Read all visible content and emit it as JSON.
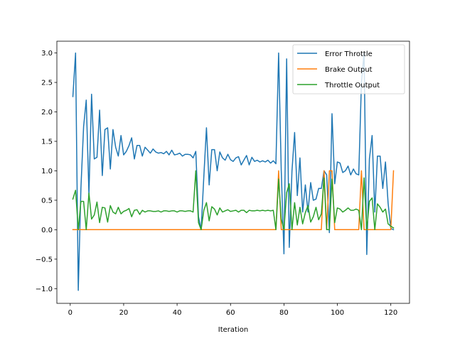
{
  "chart_data": {
    "type": "line",
    "title": "",
    "xlabel": "Iteration",
    "ylabel": "",
    "xlim": [
      -5,
      127
    ],
    "ylim": [
      -1.25,
      3.2
    ],
    "xticks": [
      0,
      20,
      40,
      60,
      80,
      100,
      120
    ],
    "yticks": [
      -1.0,
      -0.5,
      0.0,
      0.5,
      1.0,
      1.5,
      2.0,
      2.5,
      3.0
    ],
    "ytick_labels": [
      "−1.0",
      "−0.5",
      "0.0",
      "0.5",
      "1.0",
      "1.5",
      "2.0",
      "2.5",
      "3.0"
    ],
    "grid": false,
    "legend_position": "top-right",
    "x": [
      1,
      2,
      3,
      4,
      5,
      6,
      7,
      8,
      9,
      10,
      11,
      12,
      13,
      14,
      15,
      16,
      17,
      18,
      19,
      20,
      21,
      22,
      23,
      24,
      25,
      26,
      27,
      28,
      29,
      30,
      31,
      32,
      33,
      34,
      35,
      36,
      37,
      38,
      39,
      40,
      41,
      42,
      43,
      44,
      45,
      46,
      47,
      48,
      49,
      50,
      51,
      52,
      53,
      54,
      55,
      56,
      57,
      58,
      59,
      60,
      61,
      62,
      63,
      64,
      65,
      66,
      67,
      68,
      69,
      70,
      71,
      72,
      73,
      74,
      75,
      76,
      77,
      78,
      79,
      80,
      81,
      82,
      83,
      84,
      85,
      86,
      87,
      88,
      89,
      90,
      91,
      92,
      93,
      94,
      95,
      96,
      97,
      98,
      99,
      100,
      101,
      102,
      103,
      104,
      105,
      106,
      107,
      108,
      109,
      110,
      111,
      112,
      113,
      114,
      115,
      116,
      117,
      118,
      119,
      120,
      121
    ],
    "series": [
      {
        "name": "Error Throttle",
        "color": "#1f77b4",
        "values": [
          2.26,
          3.0,
          -1.03,
          0.7,
          1.75,
          2.2,
          0.6,
          2.3,
          1.2,
          1.23,
          2.03,
          0.92,
          1.7,
          1.73,
          1.03,
          1.7,
          1.4,
          1.25,
          1.6,
          1.27,
          1.33,
          1.43,
          1.56,
          1.2,
          1.43,
          1.43,
          1.25,
          1.4,
          1.35,
          1.3,
          1.37,
          1.32,
          1.3,
          1.31,
          1.29,
          1.33,
          1.27,
          1.35,
          1.27,
          1.28,
          1.3,
          1.25,
          1.28,
          1.28,
          1.27,
          1.22,
          1.33,
          0.22,
          0.0,
          0.9,
          1.73,
          0.76,
          1.36,
          1.36,
          1.0,
          1.32,
          1.22,
          1.18,
          1.28,
          1.19,
          1.16,
          1.22,
          1.24,
          1.1,
          1.18,
          1.26,
          1.1,
          1.23,
          1.16,
          1.18,
          1.15,
          1.17,
          1.15,
          1.18,
          1.13,
          1.17,
          1.12,
          3.0,
          1.0,
          -0.41,
          2.9,
          -0.3,
          1.0,
          1.65,
          0.58,
          1.22,
          0.3,
          0.76,
          0.3,
          0.8,
          0.5,
          0.52,
          0.7,
          0.7,
          1.0,
          0.93,
          -0.05,
          1.97,
          0.78,
          1.15,
          1.13,
          0.97,
          1.0,
          1.08,
          0.93,
          1.03,
          0.95,
          0.93,
          2.5,
          3.0,
          -0.42,
          1.2,
          1.6,
          0.3,
          1.25,
          1.25,
          0.7,
          1.15,
          0.45,
          0.02,
          0.0
        ]
      },
      {
        "name": "Brake Output",
        "color": "#ff7f0e",
        "values": [
          0,
          0,
          0,
          0,
          0,
          0,
          0,
          0,
          0,
          0,
          0,
          0,
          0,
          0,
          0,
          0,
          0,
          0,
          0,
          0,
          0,
          0,
          0,
          0,
          0,
          0,
          0,
          0,
          0,
          0,
          0,
          0,
          0,
          0,
          0,
          0,
          0,
          0,
          0,
          0,
          0,
          0,
          0,
          0,
          0,
          0,
          0,
          0,
          0,
          0,
          0,
          0,
          0,
          0,
          0,
          0,
          0,
          0,
          0,
          0,
          0,
          0,
          0,
          0,
          0,
          0,
          0,
          0,
          0,
          0,
          0,
          0,
          0,
          0,
          0,
          0,
          0,
          1.0,
          0,
          0,
          0,
          0,
          0,
          0,
          0,
          0,
          0,
          0,
          0,
          0,
          0,
          0,
          0,
          0,
          1.0,
          0,
          1.0,
          1.0,
          0,
          0,
          0,
          0,
          0,
          0,
          0,
          0,
          0,
          0,
          1.0,
          0,
          0,
          0,
          0,
          0,
          0,
          0,
          0,
          0,
          0,
          0,
          1.0
        ]
      },
      {
        "name": "Throttle Output",
        "color": "#2ca02c",
        "values": [
          0.52,
          0.67,
          0.0,
          0.48,
          0.48,
          0.0,
          0.62,
          0.18,
          0.25,
          0.47,
          0.12,
          0.38,
          0.37,
          0.13,
          0.41,
          0.3,
          0.27,
          0.38,
          0.27,
          0.31,
          0.33,
          0.36,
          0.22,
          0.33,
          0.34,
          0.26,
          0.33,
          0.3,
          0.32,
          0.32,
          0.31,
          0.31,
          0.32,
          0.3,
          0.32,
          0.32,
          0.31,
          0.32,
          0.32,
          0.3,
          0.32,
          0.32,
          0.31,
          0.32,
          0.32,
          0.3,
          1.0,
          0.12,
          0.0,
          0.33,
          0.46,
          0.15,
          0.39,
          0.35,
          0.25,
          0.37,
          0.3,
          0.32,
          0.34,
          0.31,
          0.32,
          0.33,
          0.3,
          0.33,
          0.33,
          0.29,
          0.33,
          0.32,
          0.32,
          0.33,
          0.32,
          0.33,
          0.32,
          0.33,
          0.32,
          0.33,
          0.0,
          0.86,
          0.18,
          0.0,
          0.63,
          0.78,
          0.0,
          0.46,
          0.08,
          0.38,
          0.1,
          0.29,
          0.41,
          0.13,
          0.22,
          0.38,
          0.17,
          0.27,
          0.88,
          0.0,
          0.0,
          0.86,
          0.12,
          0.37,
          0.35,
          0.3,
          0.33,
          0.37,
          0.33,
          0.33,
          0.35,
          0.33,
          0.0,
          0.88,
          0.0,
          0.48,
          0.54,
          0.0,
          0.44,
          0.38,
          0.3,
          0.35,
          0.1,
          0.06,
          0.03
        ]
      }
    ]
  }
}
